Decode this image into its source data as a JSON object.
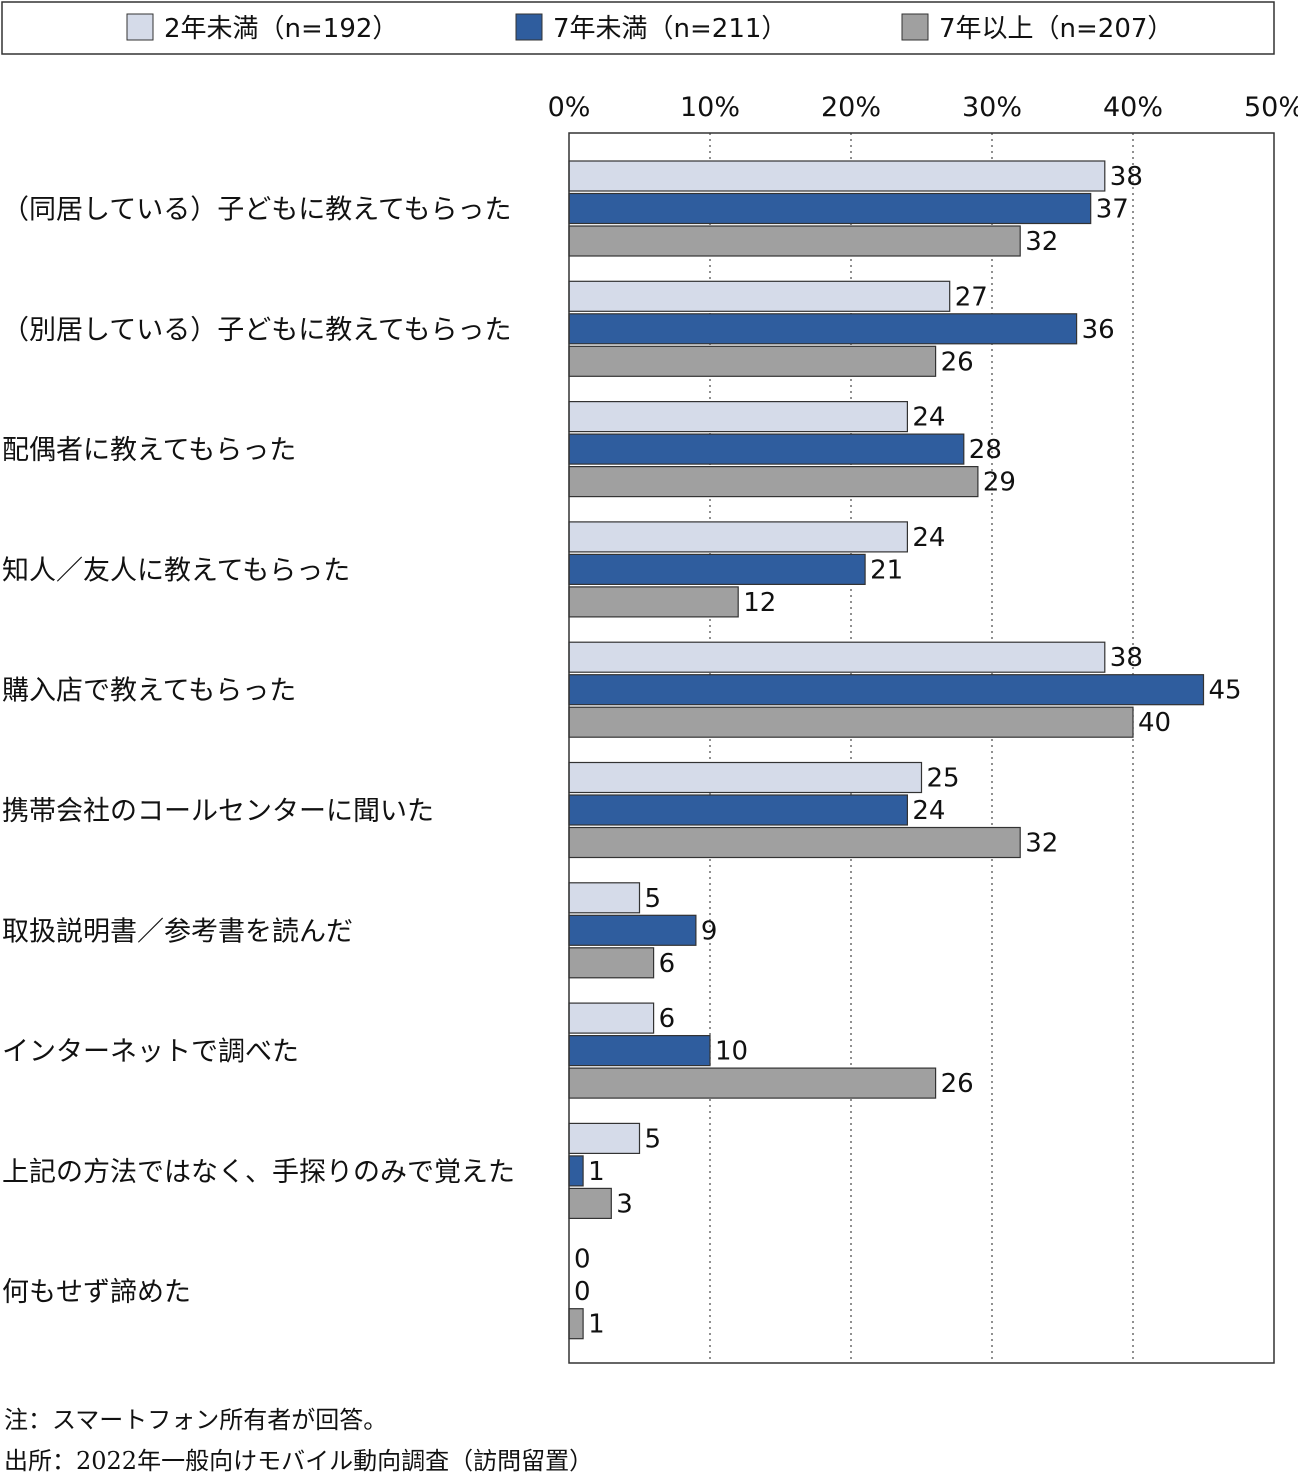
{
  "chart_data": {
    "type": "bar",
    "orientation": "horizontal",
    "categories": [
      "（同居している）子どもに教えてもらった",
      "（別居している）子どもに教えてもらった",
      "配偶者に教えてもらった",
      "知人／友人に教えてもらった",
      "購入店で教えてもらった",
      "携帯会社のコールセンターに聞いた",
      "取扱説明書／参考書を読んだ",
      "インターネットで調べた",
      "上記の方法ではなく、手探りのみで覚えた",
      "何もせず諦めた"
    ],
    "series": [
      {
        "name": "2年未満（n=192）",
        "color": "#d5dbe9",
        "values": [
          38,
          27,
          24,
          24,
          38,
          25,
          5,
          6,
          5,
          0
        ]
      },
      {
        "name": "7年未満（n=211）",
        "color": "#2f5d9e",
        "values": [
          37,
          36,
          28,
          21,
          45,
          24,
          9,
          10,
          1,
          0
        ]
      },
      {
        "name": "7年以上（n=207）",
        "color": "#a0a0a0",
        "values": [
          32,
          26,
          29,
          12,
          40,
          32,
          6,
          26,
          3,
          1
        ]
      }
    ],
    "xlim": [
      0,
      50
    ],
    "xticks": [
      "0%",
      "10%",
      "20%",
      "30%",
      "40%",
      "50%"
    ],
    "grid": true,
    "legend_position": "top"
  },
  "notes": {
    "note": "注：スマートフォン所有者が回答。",
    "source": "出所：2022年一般向けモバイル動向調査（訪問留置）"
  }
}
